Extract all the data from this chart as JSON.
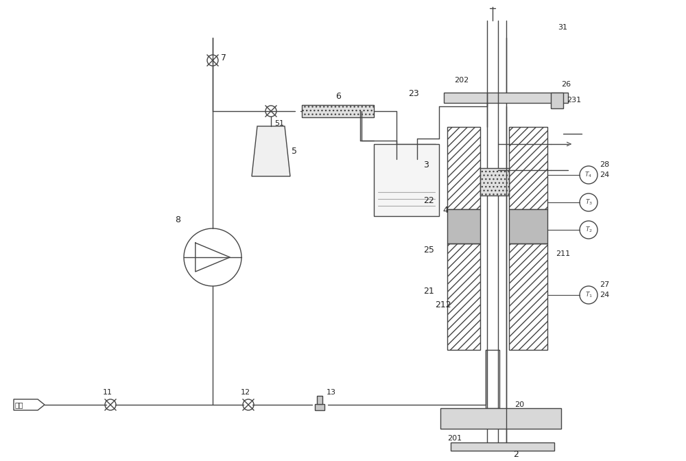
{
  "bg_color": "#ffffff",
  "line_color": "#444444",
  "fig_width": 10.0,
  "fig_height": 6.72,
  "carrier_gas": "载气"
}
